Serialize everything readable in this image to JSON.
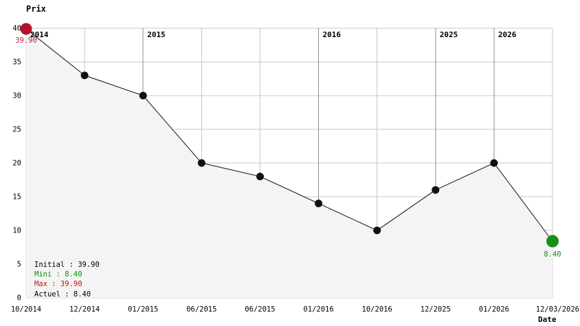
{
  "chart_data": {
    "type": "area",
    "title": "Prix",
    "xlabel": "Date",
    "x": [
      "10/2014",
      "12/2014",
      "01/2015",
      "06/2015",
      "06/2015",
      "01/2016",
      "10/2016",
      "12/2025",
      "01/2026",
      "12/03/2026"
    ],
    "values": [
      39.9,
      33,
      30,
      20,
      18,
      14,
      10,
      16,
      20,
      8.4
    ],
    "ylim": [
      0,
      40
    ],
    "y_ticks": [
      0,
      5,
      10,
      15,
      20,
      25,
      30,
      35,
      40
    ],
    "grid": true,
    "legend_position": "bottom-left-inside",
    "year_labels": [
      {
        "text": "2014",
        "tick": 0
      },
      {
        "text": "2015",
        "tick": 2
      },
      {
        "text": "2016",
        "tick": 5
      },
      {
        "text": "2025",
        "tick": 7
      },
      {
        "text": "2026",
        "tick": 8
      }
    ],
    "dark_grid_ticks": [
      2,
      5,
      7,
      8
    ],
    "start_point": {
      "label": "39.90"
    },
    "end_point": {
      "label": "8.40"
    }
  },
  "legend": {
    "items": [
      {
        "label": "Initial : 39.90",
        "color": "#000000"
      },
      {
        "label": "Mini : 8.40",
        "color": "#0d8f0d"
      },
      {
        "label": "Max : 39.90",
        "color": "#b81414"
      },
      {
        "label": "Actuel : 8.40",
        "color": "#000000"
      }
    ]
  },
  "colors": {
    "grid_light": "#c8c8c8",
    "grid_dark": "#8c8c8c",
    "area_fill": "#f4f4f4",
    "line": "#333333",
    "marker": "#111111",
    "start_marker": "#b2122a",
    "start_label": "#bb2233",
    "end_marker": "#149114",
    "end_label": "#0d8f0d",
    "tick_text": "#000000"
  }
}
